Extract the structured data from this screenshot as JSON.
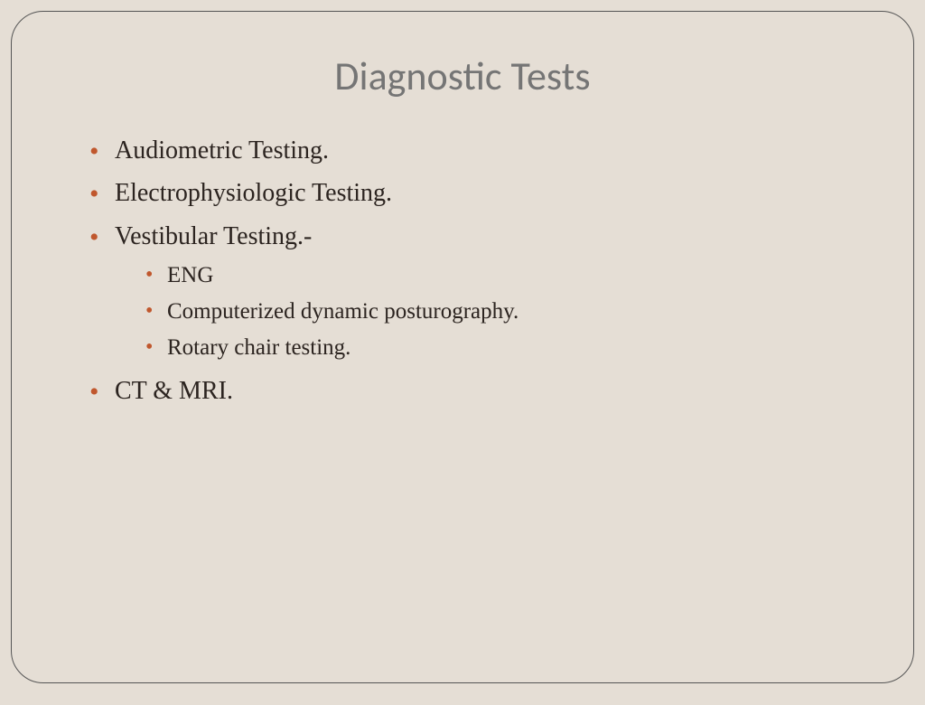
{
  "slide": {
    "title": "Diagnostic Tests",
    "background_color": "#e5ded5",
    "border_color": "#555555",
    "border_radius": 36,
    "title_color": "#757575",
    "title_fontsize": 44,
    "body_text_color": "#2c2420",
    "bullet_color": "#c0572d",
    "main_fontsize": 28,
    "sub_fontsize": 25,
    "items": [
      {
        "text": "Audiometric Testing."
      },
      {
        "text": "Electrophysiologic Testing."
      },
      {
        "text": "Vestibular Testing.-",
        "subitems": [
          {
            "text": "ENG"
          },
          {
            "text": "Computerized dynamic posturography."
          },
          {
            "text": "Rotary chair testing."
          }
        ]
      },
      {
        "text": "CT & MRI."
      }
    ]
  }
}
